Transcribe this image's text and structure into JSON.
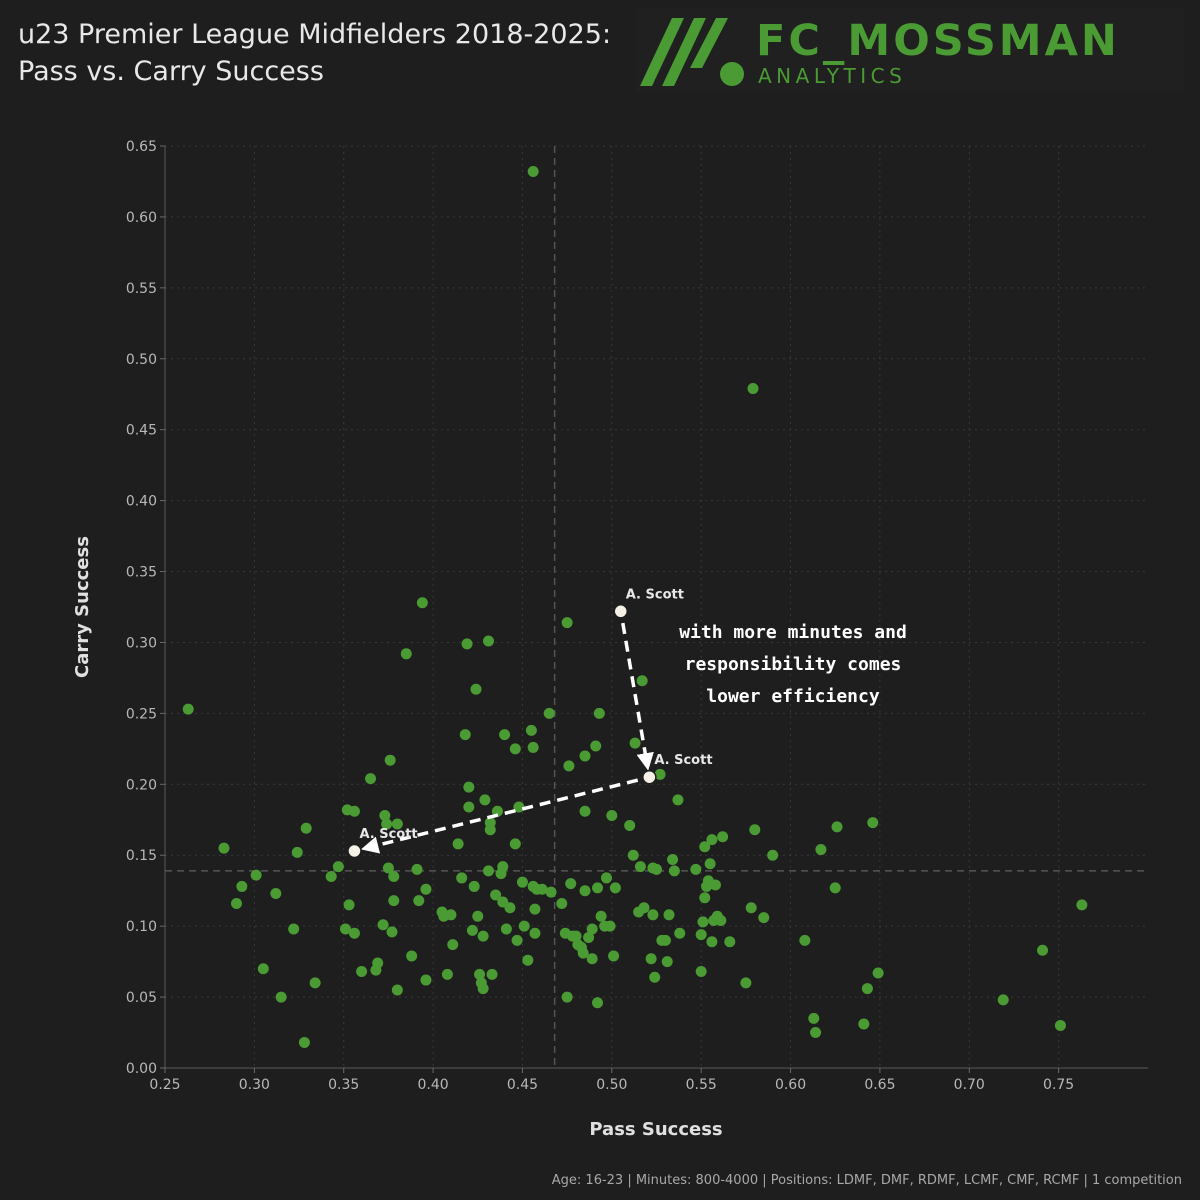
{
  "header": {
    "title": "u23 Premier League Midfielders 2018-2025: Pass vs. Carry Success"
  },
  "logo": {
    "name": "FC_MOSSMAN",
    "subtitle": "ANALYTICS"
  },
  "footer": {
    "text": "Age: 16-23 | Minutes: 800-4000 | Positions: LDMF, DMF, RDMF, LCMF, CMF, RCMF | 1 competition"
  },
  "colors": {
    "background": "#1e1e1e",
    "points": "#4a9b33",
    "highlight": "#f5f1e6",
    "text": "#e8e8e8",
    "grid": "#383838",
    "mean_line": "#555555"
  },
  "chart_data": {
    "type": "scatter",
    "xlabel": "Pass Success",
    "ylabel": "Carry Success",
    "xlim": [
      0.25,
      0.8
    ],
    "ylim": [
      0.0,
      0.65
    ],
    "xticks": [
      "0.25",
      "0.30",
      "0.35",
      "0.40",
      "0.45",
      "0.50",
      "0.55",
      "0.60",
      "0.65",
      "0.70",
      "0.75"
    ],
    "yticks": [
      "0.00",
      "0.05",
      "0.10",
      "0.15",
      "0.20",
      "0.25",
      "0.30",
      "0.35",
      "0.40",
      "0.45",
      "0.50",
      "0.55",
      "0.60",
      "0.65"
    ],
    "grid": true,
    "mean_x": 0.468,
    "mean_y": 0.139,
    "points": [
      [
        0.456,
        0.632
      ],
      [
        0.579,
        0.479
      ],
      [
        0.263,
        0.253
      ],
      [
        0.283,
        0.155
      ],
      [
        0.29,
        0.116
      ],
      [
        0.293,
        0.128
      ],
      [
        0.301,
        0.136
      ],
      [
        0.305,
        0.07
      ],
      [
        0.312,
        0.123
      ],
      [
        0.315,
        0.05
      ],
      [
        0.322,
        0.098
      ],
      [
        0.324,
        0.152
      ],
      [
        0.328,
        0.018
      ],
      [
        0.329,
        0.169
      ],
      [
        0.334,
        0.06
      ],
      [
        0.343,
        0.135
      ],
      [
        0.347,
        0.142
      ],
      [
        0.351,
        0.098
      ],
      [
        0.352,
        0.182
      ],
      [
        0.353,
        0.115
      ],
      [
        0.356,
        0.181
      ],
      [
        0.356,
        0.095
      ],
      [
        0.36,
        0.068
      ],
      [
        0.365,
        0.204
      ],
      [
        0.368,
        0.069
      ],
      [
        0.369,
        0.074
      ],
      [
        0.372,
        0.101
      ],
      [
        0.373,
        0.178
      ],
      [
        0.374,
        0.172
      ],
      [
        0.375,
        0.141
      ],
      [
        0.376,
        0.217
      ],
      [
        0.377,
        0.096
      ],
      [
        0.378,
        0.135
      ],
      [
        0.378,
        0.118
      ],
      [
        0.38,
        0.055
      ],
      [
        0.38,
        0.172
      ],
      [
        0.385,
        0.292
      ],
      [
        0.388,
        0.079
      ],
      [
        0.391,
        0.14
      ],
      [
        0.392,
        0.118
      ],
      [
        0.394,
        0.328
      ],
      [
        0.396,
        0.126
      ],
      [
        0.396,
        0.062
      ],
      [
        0.405,
        0.11
      ],
      [
        0.406,
        0.107
      ],
      [
        0.408,
        0.066
      ],
      [
        0.41,
        0.108
      ],
      [
        0.411,
        0.087
      ],
      [
        0.414,
        0.158
      ],
      [
        0.416,
        0.134
      ],
      [
        0.418,
        0.235
      ],
      [
        0.419,
        0.299
      ],
      [
        0.42,
        0.198
      ],
      [
        0.42,
        0.184
      ],
      [
        0.422,
        0.097
      ],
      [
        0.423,
        0.128
      ],
      [
        0.424,
        0.267
      ],
      [
        0.425,
        0.107
      ],
      [
        0.426,
        0.066
      ],
      [
        0.427,
        0.06
      ],
      [
        0.428,
        0.056
      ],
      [
        0.428,
        0.093
      ],
      [
        0.429,
        0.189
      ],
      [
        0.431,
        0.301
      ],
      [
        0.431,
        0.139
      ],
      [
        0.432,
        0.173
      ],
      [
        0.432,
        0.168
      ],
      [
        0.433,
        0.066
      ],
      [
        0.435,
        0.122
      ],
      [
        0.436,
        0.181
      ],
      [
        0.438,
        0.137
      ],
      [
        0.439,
        0.117
      ],
      [
        0.439,
        0.142
      ],
      [
        0.44,
        0.235
      ],
      [
        0.441,
        0.098
      ],
      [
        0.443,
        0.113
      ],
      [
        0.446,
        0.158
      ],
      [
        0.446,
        0.225
      ],
      [
        0.447,
        0.09
      ],
      [
        0.448,
        0.184
      ],
      [
        0.45,
        0.131
      ],
      [
        0.451,
        0.1
      ],
      [
        0.453,
        0.076
      ],
      [
        0.455,
        0.238
      ],
      [
        0.456,
        0.128
      ],
      [
        0.456,
        0.226
      ],
      [
        0.457,
        0.112
      ],
      [
        0.457,
        0.095
      ],
      [
        0.458,
        0.126
      ],
      [
        0.461,
        0.126
      ],
      [
        0.465,
        0.25
      ],
      [
        0.466,
        0.124
      ],
      [
        0.472,
        0.116
      ],
      [
        0.474,
        0.095
      ],
      [
        0.475,
        0.314
      ],
      [
        0.475,
        0.05
      ],
      [
        0.476,
        0.213
      ],
      [
        0.477,
        0.13
      ],
      [
        0.478,
        0.093
      ],
      [
        0.48,
        0.093
      ],
      [
        0.481,
        0.087
      ],
      [
        0.483,
        0.085
      ],
      [
        0.484,
        0.081
      ],
      [
        0.485,
        0.181
      ],
      [
        0.485,
        0.22
      ],
      [
        0.485,
        0.125
      ],
      [
        0.487,
        0.092
      ],
      [
        0.489,
        0.077
      ],
      [
        0.489,
        0.098
      ],
      [
        0.491,
        0.227
      ],
      [
        0.492,
        0.046
      ],
      [
        0.492,
        0.127
      ],
      [
        0.493,
        0.25
      ],
      [
        0.494,
        0.107
      ],
      [
        0.496,
        0.1
      ],
      [
        0.497,
        0.134
      ],
      [
        0.499,
        0.1
      ],
      [
        0.5,
        0.178
      ],
      [
        0.501,
        0.079
      ],
      [
        0.502,
        0.127
      ],
      [
        0.51,
        0.171
      ],
      [
        0.512,
        0.15
      ],
      [
        0.513,
        0.229
      ],
      [
        0.515,
        0.11
      ],
      [
        0.516,
        0.142
      ],
      [
        0.517,
        0.273
      ],
      [
        0.518,
        0.113
      ],
      [
        0.522,
        0.077
      ],
      [
        0.523,
        0.108
      ],
      [
        0.523,
        0.141
      ],
      [
        0.524,
        0.064
      ],
      [
        0.525,
        0.14
      ],
      [
        0.527,
        0.207
      ],
      [
        0.528,
        0.09
      ],
      [
        0.53,
        0.09
      ],
      [
        0.531,
        0.075
      ],
      [
        0.532,
        0.108
      ],
      [
        0.534,
        0.147
      ],
      [
        0.535,
        0.139
      ],
      [
        0.537,
        0.189
      ],
      [
        0.538,
        0.095
      ],
      [
        0.547,
        0.14
      ],
      [
        0.55,
        0.068
      ],
      [
        0.55,
        0.094
      ],
      [
        0.551,
        0.103
      ],
      [
        0.552,
        0.156
      ],
      [
        0.552,
        0.12
      ],
      [
        0.553,
        0.128
      ],
      [
        0.554,
        0.132
      ],
      [
        0.555,
        0.144
      ],
      [
        0.556,
        0.161
      ],
      [
        0.556,
        0.089
      ],
      [
        0.557,
        0.104
      ],
      [
        0.558,
        0.129
      ],
      [
        0.559,
        0.107
      ],
      [
        0.561,
        0.104
      ],
      [
        0.562,
        0.163
      ],
      [
        0.566,
        0.089
      ],
      [
        0.575,
        0.06
      ],
      [
        0.578,
        0.113
      ],
      [
        0.58,
        0.168
      ],
      [
        0.585,
        0.106
      ],
      [
        0.59,
        0.15
      ],
      [
        0.608,
        0.09
      ],
      [
        0.613,
        0.035
      ],
      [
        0.614,
        0.025
      ],
      [
        0.617,
        0.154
      ],
      [
        0.625,
        0.127
      ],
      [
        0.626,
        0.17
      ],
      [
        0.641,
        0.031
      ],
      [
        0.643,
        0.056
      ],
      [
        0.646,
        0.173
      ],
      [
        0.649,
        0.067
      ],
      [
        0.719,
        0.048
      ],
      [
        0.741,
        0.083
      ],
      [
        0.751,
        0.03
      ],
      [
        0.763,
        0.115
      ]
    ],
    "highlighted": [
      {
        "label": "A. Scott",
        "x": 0.505,
        "y": 0.322
      },
      {
        "label": "A. Scott",
        "x": 0.521,
        "y": 0.205
      },
      {
        "label": "A. Scott",
        "x": 0.356,
        "y": 0.153
      }
    ],
    "annotation": "with more minutes and responsibility comes lower efficiency"
  }
}
